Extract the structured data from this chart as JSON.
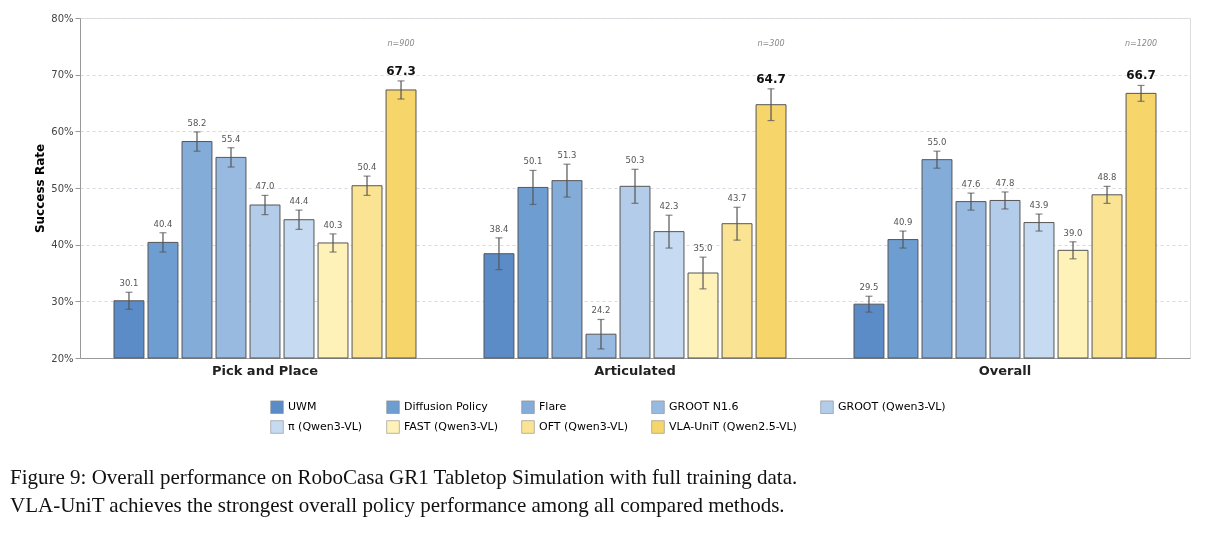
{
  "chart_data": {
    "type": "bar",
    "categories": [
      "Pick and Place",
      "Articulated",
      "Overall"
    ],
    "ylabel": "Success Rate",
    "ylim": [
      20,
      80
    ],
    "yticks": [
      {
        "value": 20,
        "label": "20%"
      },
      {
        "value": 30,
        "label": "30%"
      },
      {
        "value": 40,
        "label": "40%"
      },
      {
        "value": 50,
        "label": "50%"
      },
      {
        "value": 60,
        "label": "60%"
      },
      {
        "value": 70,
        "label": "70%"
      },
      {
        "value": 80,
        "label": "80%"
      }
    ],
    "grid": "y",
    "legend": "bottom",
    "series": [
      {
        "name": "UWM",
        "color": "#5b8cc8",
        "values": [
          30.1,
          38.4,
          29.5
        ],
        "errors": [
          1.5,
          2.8,
          1.4
        ],
        "value_labels": [
          "30.1",
          "38.4",
          "29.5"
        ]
      },
      {
        "name": "Diffusion Policy",
        "color": "#6e9dd1",
        "values": [
          40.4,
          50.1,
          40.9
        ],
        "errors": [
          1.7,
          3.0,
          1.5
        ],
        "value_labels": [
          "40.4",
          "50.1",
          "40.9"
        ]
      },
      {
        "name": "Flare",
        "color": "#84acd9",
        "values": [
          58.2,
          51.3,
          55.0
        ],
        "errors": [
          1.7,
          2.9,
          1.5
        ],
        "value_labels": [
          "58.2",
          "51.3",
          "55.0"
        ]
      },
      {
        "name": "GROOT N1.6",
        "color": "#98b9e0",
        "values": [
          55.4,
          24.2,
          47.6
        ],
        "errors": [
          1.7,
          2.6,
          1.5
        ],
        "value_labels": [
          "55.4",
          "24.2",
          "47.6"
        ]
      },
      {
        "name": "GROOT (Qwen3-VL)",
        "color": "#b2cce9",
        "values": [
          47.0,
          50.3,
          47.8
        ],
        "errors": [
          1.7,
          3.0,
          1.5
        ],
        "value_labels": [
          "47.0",
          "50.3",
          "47.8"
        ]
      },
      {
        "name": "π (Qwen3-VL)",
        "color": "#c6dbf1",
        "values": [
          44.4,
          42.3,
          43.9
        ],
        "errors": [
          1.7,
          2.9,
          1.5
        ],
        "value_labels": [
          "44.4",
          "42.3",
          "43.9"
        ]
      },
      {
        "name": "FAST (Qwen3-VL)",
        "color": "#fef2b8",
        "values": [
          40.3,
          35.0,
          39.0
        ],
        "errors": [
          1.6,
          2.8,
          1.5
        ],
        "value_labels": [
          "40.3",
          "35.0",
          "39.0"
        ]
      },
      {
        "name": "OFT (Qwen3-VL)",
        "color": "#fae493",
        "values": [
          50.4,
          43.7,
          48.8
        ],
        "errors": [
          1.7,
          2.9,
          1.5
        ],
        "value_labels": [
          "50.4",
          "43.7",
          "48.8"
        ]
      },
      {
        "name": "VLA-UniT (Qwen2.5-VL)",
        "color": "#f6d66b",
        "values": [
          67.3,
          64.7,
          66.7
        ],
        "errors": [
          1.6,
          2.8,
          1.4
        ],
        "value_labels": [
          "67.3",
          "64.7",
          "66.7"
        ]
      }
    ],
    "annotations": [
      "n=900",
      "n=300",
      "n=1200",
      "Figure 9:   Overall performance on RoboCasa GR1 Tabletop Simulation with full training data.",
      "VLA-UniT achieves the strongest overall policy performance among all compared methods."
    ]
  }
}
